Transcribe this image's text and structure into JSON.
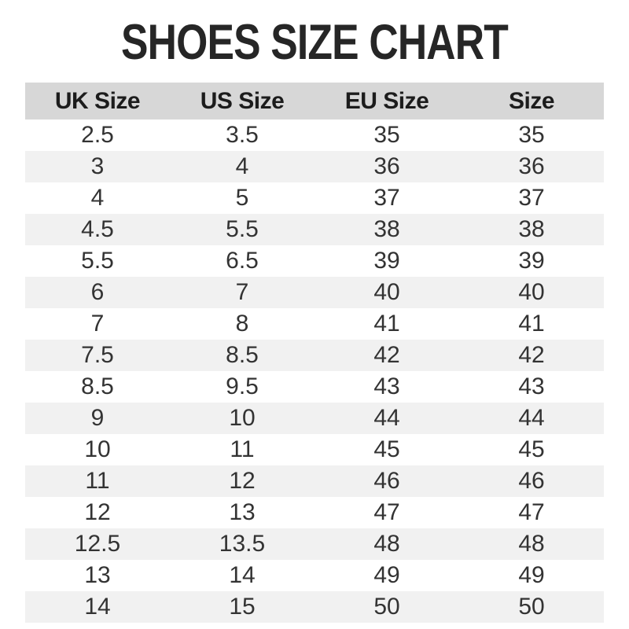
{
  "title": "SHOES SIZE CHART",
  "chart_data": {
    "type": "table",
    "title": "SHOES SIZE CHART",
    "columns": [
      "UK Size",
      "US Size",
      "EU Size",
      "Size"
    ],
    "rows": [
      [
        "2.5",
        "3.5",
        "35",
        "35"
      ],
      [
        "3",
        "4",
        "36",
        "36"
      ],
      [
        "4",
        "5",
        "37",
        "37"
      ],
      [
        "4.5",
        "5.5",
        "38",
        "38"
      ],
      [
        "5.5",
        "6.5",
        "39",
        "39"
      ],
      [
        "6",
        "7",
        "40",
        "40"
      ],
      [
        "7",
        "8",
        "41",
        "41"
      ],
      [
        "7.5",
        "8.5",
        "42",
        "42"
      ],
      [
        "8.5",
        "9.5",
        "43",
        "43"
      ],
      [
        "9",
        "10",
        "44",
        "44"
      ],
      [
        "10",
        "11",
        "45",
        "45"
      ],
      [
        "11",
        "12",
        "46",
        "46"
      ],
      [
        "12",
        "13",
        "47",
        "47"
      ],
      [
        "12.5",
        "13.5",
        "48",
        "48"
      ],
      [
        "13",
        "14",
        "49",
        "49"
      ],
      [
        "14",
        "15",
        "50",
        "50"
      ]
    ],
    "layout": {
      "header_background": "#d7d7d7",
      "stripe_background": "#f1f1f1",
      "row_background": "#ffffff",
      "striped": "even-rows",
      "text_align": "center"
    }
  },
  "colors": {
    "title_text": "#262626",
    "header_text": "#1c1c1c",
    "body_text": "#333333",
    "header_bg": "#d7d7d7",
    "stripe_bg": "#f1f1f1",
    "page_bg": "#ffffff"
  }
}
